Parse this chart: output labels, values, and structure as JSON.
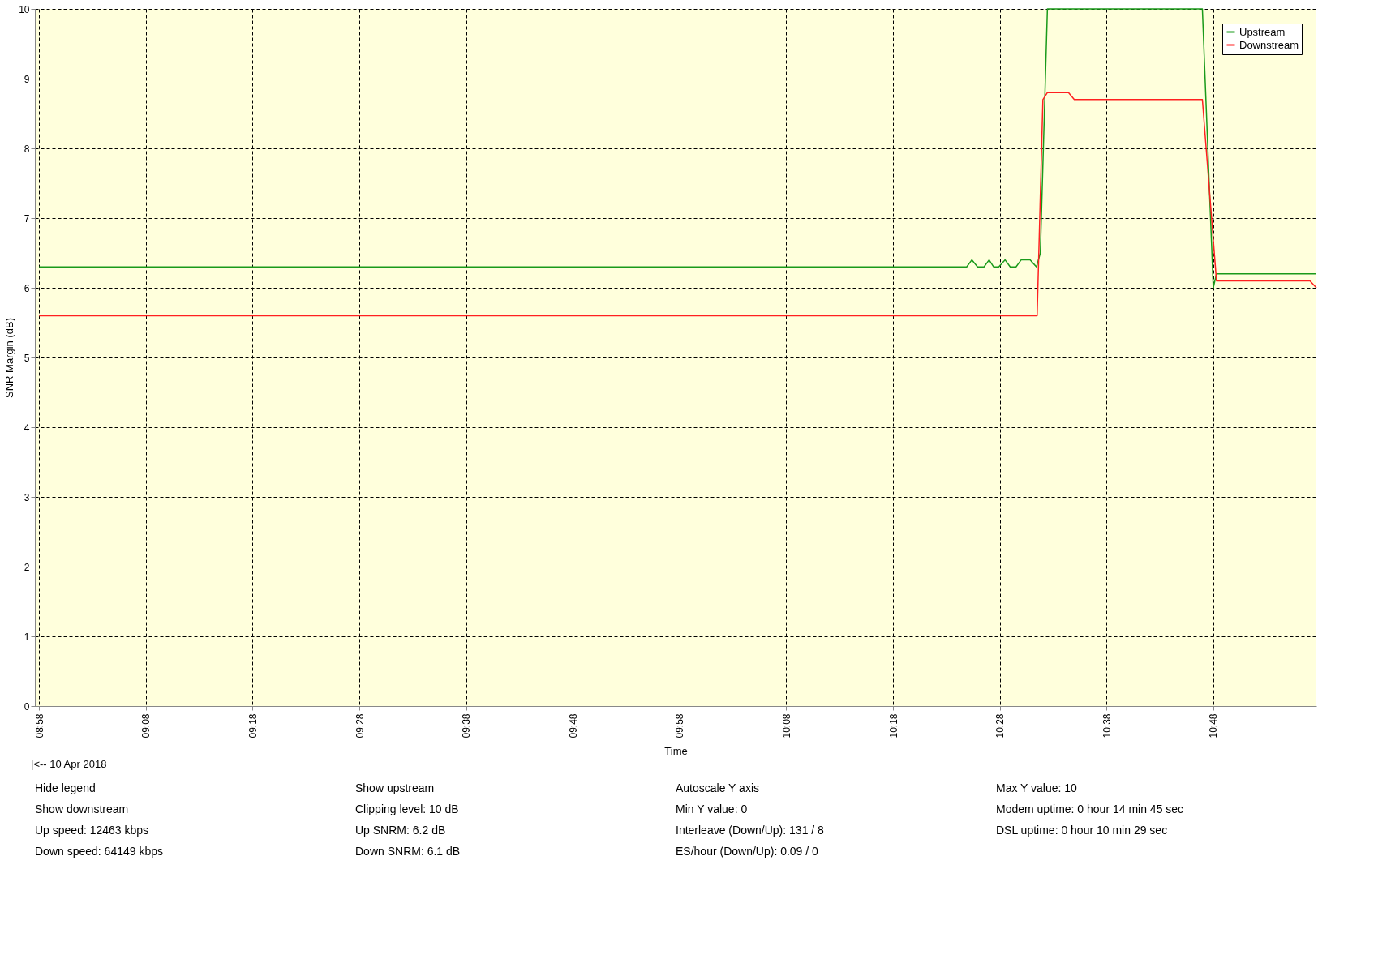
{
  "chart_data": {
    "type": "line",
    "xlabel": "Time",
    "ylabel": "SNR Margin (dB)",
    "xlim": [
      8.96,
      10.961
    ],
    "ylim": [
      0,
      10
    ],
    "xticks": [
      {
        "value": 8.9667,
        "label": "08:58"
      },
      {
        "value": 9.1333,
        "label": "09:08"
      },
      {
        "value": 9.3,
        "label": "09:18"
      },
      {
        "value": 9.4667,
        "label": "09:28"
      },
      {
        "value": 9.6333,
        "label": "09:38"
      },
      {
        "value": 9.8,
        "label": "09:48"
      },
      {
        "value": 9.9667,
        "label": "09:58"
      },
      {
        "value": 10.1333,
        "label": "10:08"
      },
      {
        "value": 10.3,
        "label": "10:18"
      },
      {
        "value": 10.4667,
        "label": "10:28"
      },
      {
        "value": 10.6333,
        "label": "10:38"
      },
      {
        "value": 10.8,
        "label": "10:48"
      }
    ],
    "yticks": [
      0,
      1,
      2,
      3,
      4,
      5,
      6,
      7,
      8,
      9,
      10
    ],
    "grid": true,
    "legend": "top right",
    "line_style": "solid",
    "marker": "none",
    "series": [
      {
        "name": "Upstream",
        "color": "#1a9a1a",
        "x": [
          8.9667,
          10.415,
          10.423,
          10.432,
          10.442,
          10.45,
          10.457,
          10.465,
          10.475,
          10.483,
          10.492,
          10.5,
          10.514,
          10.524,
          10.53,
          10.541,
          10.783,
          10.8,
          10.805,
          10.961
        ],
        "values": [
          6.3,
          6.3,
          6.4,
          6.3,
          6.3,
          6.4,
          6.3,
          6.3,
          6.4,
          6.3,
          6.3,
          6.4,
          6.4,
          6.3,
          6.5,
          10,
          10,
          6.0,
          6.2,
          6.2
        ]
      },
      {
        "name": "Downstream",
        "color": "#ff2020",
        "x": [
          8.9667,
          10.525,
          10.534,
          10.541,
          10.574,
          10.583,
          10.783,
          10.805,
          10.951,
          10.961
        ],
        "values": [
          5.6,
          5.6,
          8.7,
          8.8,
          8.8,
          8.7,
          8.7,
          6.1,
          6.1,
          6.0
        ]
      }
    ],
    "annotations": [
      "|<-- 10 Apr 2018",
      "Hide legend",
      "Show upstream",
      "Autoscale Y axis",
      "Max Y value: 10",
      "Show downstream",
      "Clipping level: 10 dB",
      "Min Y value: 0",
      "Modem uptime:  0 hour 14 min 45 sec",
      "Up speed: 12463 kbps",
      "Up SNRM: 6.2 dB",
      "Interleave (Down/Up): 131 / 8",
      "DSL uptime:  0 hour 10 min 29 sec",
      "Down speed: 64149 kbps",
      "Down SNRM: 6.1 dB",
      "ES/hour (Down/Up): 0.09 / 0"
    ]
  }
}
